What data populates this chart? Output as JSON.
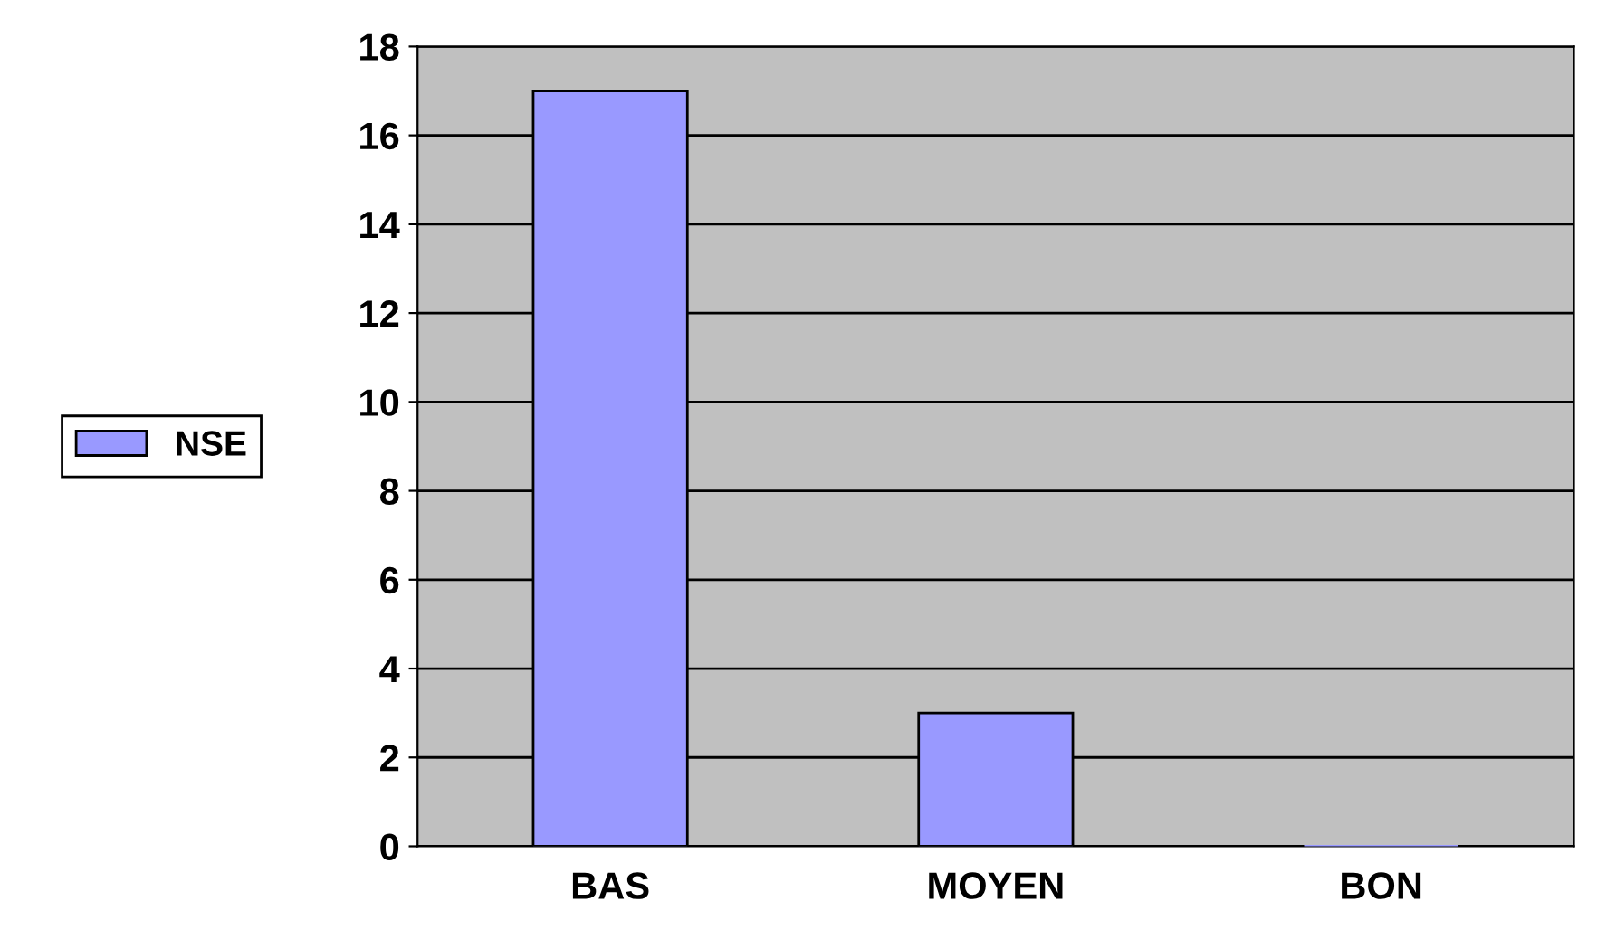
{
  "chart_data": {
    "type": "bar",
    "categories": [
      "BAS",
      "MOYEN",
      "BON"
    ],
    "series": [
      {
        "name": "NSE",
        "color": "#9999ff",
        "values": [
          17,
          3,
          0
        ]
      }
    ],
    "ylim": [
      0,
      18
    ],
    "yticks": [
      0,
      2,
      4,
      6,
      8,
      10,
      12,
      14,
      16,
      18
    ],
    "grid": "y",
    "legend": "left"
  }
}
